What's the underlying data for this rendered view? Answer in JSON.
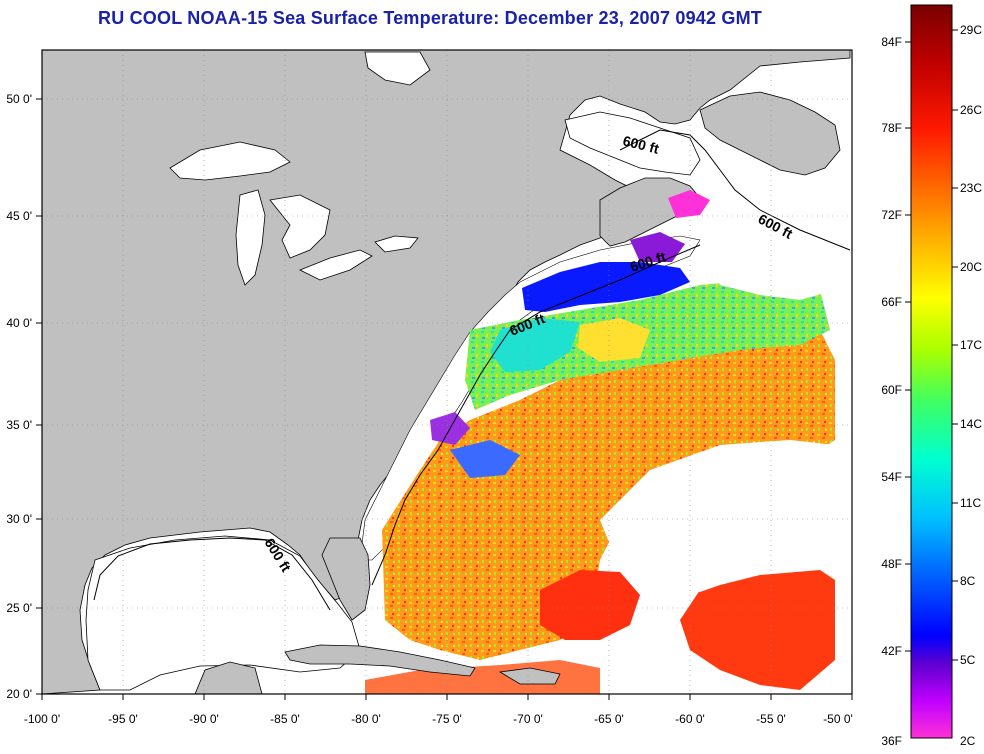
{
  "title": "RU COOL  NOAA-15  Sea Surface Temperature:  December 23, 2007 0942 GMT",
  "map": {
    "x_ticks": [
      "-100 0'",
      "-95 0'",
      "-90 0'",
      "-85 0'",
      "-80 0'",
      "-75 0'",
      "-70 0'",
      "-65 0'",
      "-60 0'",
      "-55 0'",
      "-50 0'"
    ],
    "y_ticks": [
      "50 0'",
      "45 0'",
      "40 0'",
      "35 0'",
      "30 0'",
      "25 0'",
      "20 0'"
    ],
    "contour_label": "600 ft",
    "colors": {
      "land": "#c0c0c0",
      "cloud": "#ffffff",
      "frame": "#000000"
    }
  },
  "colorbar": {
    "fahrenheit": [
      "84F",
      "78F",
      "72F",
      "66F",
      "60F",
      "54F",
      "48F",
      "42F",
      "36F"
    ],
    "celsius": [
      "29C",
      "26C",
      "23C",
      "20C",
      "17C",
      "14C",
      "11C",
      "8C",
      "5C",
      "2C"
    ],
    "gradient": [
      "#7a0000",
      "#c00000",
      "#ff1a00",
      "#ff6a00",
      "#ffb000",
      "#ffff00",
      "#aaff00",
      "#40ff60",
      "#00ffd0",
      "#00c0ff",
      "#0060ff",
      "#0000ff",
      "#6000d0",
      "#c000ff",
      "#ff30d8"
    ]
  }
}
